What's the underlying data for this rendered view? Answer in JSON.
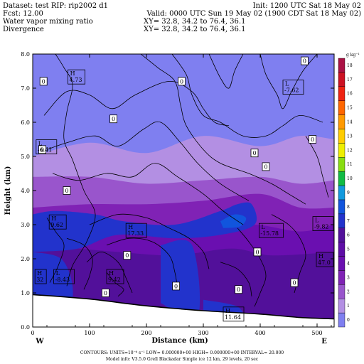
{
  "header": {
    "dataset": "Dataset: test  RIP: rip2002 d1",
    "init": "Init: 1200 UTC Sat 18 May 02",
    "fcst": "Fcst:    12.00",
    "valid": "Valid: 0000 UTC Sun 19 May 02 (1900 CDT Sat 18 May 02)",
    "field1": "Water vapor mixing ratio",
    "xy1": "XY=   32.8, 34.2 to   76.4, 36.1",
    "field2": "Divergence",
    "xy2": "XY=   32.8, 34.2 to   76.4, 36.1"
  },
  "footer": {
    "contours": "CONTOURS:  UNITS=10⁻⁶ s⁻¹  LOW= 0.000000+00  HIGH= 0.000000+00  INTERVAL=    20.000",
    "model": "Model info: V3.5.0   Grell     Blackadar   Simple ice    12 km,  29 levels,   20 sec"
  },
  "chart_data": {
    "type": "heatmap",
    "xlabel": "Distance (km)",
    "ylabel": "Height (km)",
    "xlim": [
      0,
      530
    ],
    "ylim": [
      0,
      8
    ],
    "x_ticks": [
      0,
      100,
      200,
      300,
      400,
      500
    ],
    "y_ticks": [
      "0.0",
      "1.0",
      "2.0",
      "3.0",
      "4.0",
      "5.0",
      "6.0",
      "7.0",
      "8.0"
    ],
    "x_end_labels": {
      "left": "W",
      "right": "E"
    },
    "colorbar": {
      "unit": "g kg⁻¹",
      "levels": [
        "0",
        "1",
        "2",
        "3",
        "4",
        "5",
        "6",
        "7",
        "8",
        "9",
        "10",
        "11",
        "12",
        "13",
        "14",
        "15",
        "16",
        "17",
        "18"
      ],
      "colors": [
        "#7f7ff0",
        "#b38fe3",
        "#9955cc",
        "#8022b5",
        "#6a0fb0",
        "#5e0da6",
        "#52109a",
        "#2233cc",
        "#1155dd",
        "#1199dd",
        "#11bb44",
        "#88dd11",
        "#eeee00",
        "#ffcc00",
        "#ff9900",
        "#ff6600",
        "#ee2211",
        "#cc1122",
        "#aa1144"
      ]
    },
    "fill_bands": [
      {
        "level": 0,
        "top": [
          [
            0,
            8.0
          ],
          [
            530,
            8.0
          ]
        ]
      },
      {
        "level": 1,
        "top": [
          [
            0,
            5.0
          ],
          [
            100,
            5.4
          ],
          [
            200,
            5.1
          ],
          [
            300,
            5.6
          ],
          [
            400,
            5.3
          ],
          [
            470,
            5.6
          ],
          [
            530,
            5.5
          ]
        ]
      },
      {
        "level": 2,
        "top": [
          [
            0,
            4.4
          ],
          [
            100,
            4.4
          ],
          [
            200,
            4.2
          ],
          [
            300,
            4.3
          ],
          [
            400,
            4.4
          ],
          [
            470,
            4.2
          ],
          [
            530,
            4.3
          ]
        ]
      },
      {
        "level": 3,
        "top": [
          [
            0,
            3.5
          ],
          [
            100,
            3.6
          ],
          [
            200,
            3.6
          ],
          [
            300,
            3.7
          ],
          [
            400,
            3.9
          ],
          [
            470,
            3.5
          ],
          [
            530,
            3.5
          ]
        ]
      },
      {
        "level": 4,
        "top": [
          [
            0,
            3.0
          ],
          [
            60,
            3.0
          ],
          [
            130,
            2.9
          ],
          [
            200,
            2.7
          ],
          [
            300,
            2.9
          ],
          [
            390,
            3.0
          ],
          [
            470,
            2.8
          ],
          [
            530,
            3.0
          ]
        ]
      },
      {
        "level": 6,
        "top": [
          [
            0,
            2.4
          ],
          [
            80,
            2.3
          ],
          [
            150,
            2.2
          ],
          [
            250,
            2.1
          ],
          [
            350,
            2.3
          ],
          [
            420,
            2.1
          ],
          [
            530,
            2.2
          ]
        ]
      }
    ],
    "blue_patches": [
      {
        "level": 7,
        "pts": [
          [
            0,
            3.3
          ],
          [
            40,
            3.4
          ],
          [
            110,
            3.3
          ],
          [
            160,
            3.1
          ],
          [
            250,
            3.0
          ],
          [
            330,
            3.4
          ],
          [
            360,
            3.6
          ],
          [
            385,
            3.6
          ],
          [
            390,
            3.0
          ],
          [
            330,
            2.7
          ],
          [
            250,
            2.6
          ],
          [
            150,
            2.7
          ],
          [
            80,
            2.3
          ],
          [
            0,
            2.2
          ]
        ]
      },
      {
        "level": 7,
        "pts": [
          [
            0,
            2.2
          ],
          [
            50,
            2.0
          ],
          [
            70,
            1.2
          ],
          [
            60,
            0.6
          ],
          [
            0,
            0.6
          ]
        ]
      },
      {
        "level": 7,
        "pts": [
          [
            225,
            2.4
          ],
          [
            280,
            2.4
          ],
          [
            290,
            0.3
          ],
          [
            225,
            0.7
          ]
        ]
      },
      {
        "level": 7,
        "pts": [
          [
            300,
            0.8
          ],
          [
            360,
            0.6
          ],
          [
            365,
            0.2
          ],
          [
            300,
            0.3
          ]
        ]
      },
      {
        "level": 8,
        "pts": [
          [
            330,
            3.1
          ],
          [
            355,
            3.3
          ],
          [
            375,
            3.2
          ],
          [
            365,
            2.95
          ],
          [
            335,
            2.9
          ]
        ]
      }
    ],
    "terrain": [
      [
        0,
        0.95
      ],
      [
        100,
        0.82
      ],
      [
        200,
        0.62
      ],
      [
        300,
        0.48
      ],
      [
        400,
        0.38
      ],
      [
        470,
        0.28
      ],
      [
        530,
        0.24
      ]
    ],
    "contours": [
      [
        [
          40,
          8.0
        ],
        [
          55,
          7.6
        ],
        [
          70,
          7.1
        ],
        [
          60,
          6.3
        ],
        [
          55,
          5.5
        ],
        [
          70,
          4.9
        ],
        [
          90,
          4.0
        ],
        [
          110,
          3.3
        ],
        [
          95,
          2.5
        ],
        [
          70,
          1.8
        ],
        [
          60,
          1.2
        ]
      ],
      [
        [
          20,
          6.2
        ],
        [
          60,
          6.9
        ],
        [
          100,
          6.8
        ],
        [
          140,
          6.4
        ],
        [
          180,
          6.8
        ],
        [
          240,
          7.2
        ],
        [
          280,
          6.9
        ],
        [
          300,
          6.4
        ],
        [
          320,
          6.0
        ],
        [
          345,
          5.9
        ]
      ],
      [
        [
          25,
          5.2
        ],
        [
          60,
          5.4
        ],
        [
          110,
          5.6
        ],
        [
          150,
          5.3
        ],
        [
          195,
          5.8
        ],
        [
          225,
          6.0
        ],
        [
          260,
          5.4
        ],
        [
          290,
          4.8
        ],
        [
          330,
          4.2
        ],
        [
          380,
          3.7
        ]
      ],
      [
        [
          35,
          4.5
        ],
        [
          80,
          4.3
        ],
        [
          130,
          4.5
        ],
        [
          175,
          4.4
        ],
        [
          215,
          4.8
        ],
        [
          255,
          4.4
        ],
        [
          300,
          3.9
        ],
        [
          335,
          3.4
        ],
        [
          370,
          3.0
        ]
      ],
      [
        [
          100,
          3.0
        ],
        [
          150,
          3.3
        ],
        [
          200,
          3.2
        ],
        [
          240,
          2.9
        ],
        [
          275,
          2.6
        ],
        [
          300,
          2.2
        ],
        [
          310,
          1.7
        ]
      ],
      [
        [
          130,
          2.4
        ],
        [
          170,
          2.6
        ],
        [
          210,
          2.5
        ],
        [
          240,
          2.1
        ],
        [
          250,
          1.6
        ],
        [
          255,
          1.1
        ]
      ],
      [
        [
          95,
          1.9
        ],
        [
          120,
          2.2
        ],
        [
          150,
          1.9
        ],
        [
          165,
          1.4
        ],
        [
          175,
          1.0
        ]
      ],
      [
        [
          190,
          8.0
        ],
        [
          220,
          7.6
        ],
        [
          250,
          7.2
        ],
        [
          260,
          6.5
        ],
        [
          270,
          5.9
        ],
        [
          300,
          5.2
        ],
        [
          330,
          4.8
        ],
        [
          380,
          4.5
        ],
        [
          420,
          4.2
        ],
        [
          450,
          3.9
        ],
        [
          480,
          3.6
        ]
      ],
      [
        [
          245,
          8.0
        ],
        [
          270,
          7.4
        ],
        [
          280,
          6.8
        ],
        [
          300,
          6.2
        ],
        [
          330,
          6.0
        ],
        [
          370,
          5.6
        ],
        [
          410,
          5.6
        ],
        [
          440,
          5.9
        ],
        [
          470,
          6.2
        ],
        [
          510,
          6.0
        ]
      ],
      [
        [
          310,
          8.0
        ],
        [
          330,
          7.3
        ],
        [
          345,
          7.0
        ],
        [
          355,
          7.5
        ],
        [
          370,
          8.0
        ]
      ],
      [
        [
          400,
          8.0
        ],
        [
          410,
          7.4
        ],
        [
          430,
          6.8
        ],
        [
          440,
          6.4
        ],
        [
          455,
          6.9
        ],
        [
          475,
          7.5
        ],
        [
          500,
          8.0
        ]
      ],
      [
        [
          360,
          2.9
        ],
        [
          380,
          2.5
        ],
        [
          400,
          2.0
        ],
        [
          410,
          1.5
        ],
        [
          400,
          1.0
        ],
        [
          390,
          0.6
        ]
      ],
      [
        [
          420,
          3.3
        ],
        [
          450,
          3.0
        ],
        [
          470,
          2.6
        ],
        [
          480,
          2.1
        ],
        [
          470,
          1.6
        ],
        [
          460,
          1.0
        ]
      ],
      [
        [
          25,
          3.2
        ],
        [
          40,
          2.8
        ],
        [
          55,
          2.4
        ],
        [
          45,
          1.8
        ],
        [
          30,
          1.3
        ]
      ],
      [
        [
          130,
          1.6
        ],
        [
          145,
          1.3
        ],
        [
          160,
          1.1
        ],
        [
          150,
          0.9
        ]
      ],
      [
        [
          60,
          2.6
        ],
        [
          90,
          2.4
        ],
        [
          105,
          2.0
        ],
        [
          100,
          1.5
        ],
        [
          90,
          1.1
        ]
      ],
      [
        [
          480,
          5.6
        ],
        [
          500,
          5.0
        ],
        [
          510,
          4.4
        ],
        [
          520,
          3.8
        ]
      ],
      [
        [
          330,
          1.9
        ],
        [
          360,
          1.7
        ],
        [
          380,
          1.3
        ],
        [
          385,
          0.9
        ]
      ]
    ],
    "zero_labels": [
      {
        "x": 19,
        "y": 7.2
      },
      {
        "x": 142,
        "y": 6.1
      },
      {
        "x": 262,
        "y": 7.2
      },
      {
        "x": 60,
        "y": 4.0
      },
      {
        "x": 128,
        "y": 1.0
      },
      {
        "x": 166,
        "y": 2.1
      },
      {
        "x": 252,
        "y": 1.2
      },
      {
        "x": 390,
        "y": 5.1
      },
      {
        "x": 478,
        "y": 7.8
      },
      {
        "x": 492,
        "y": 5.5
      },
      {
        "x": 395,
        "y": 2.2
      },
      {
        "x": 460,
        "y": 1.3
      },
      {
        "x": 362,
        "y": 1.1
      },
      {
        "x": 17,
        "y": 5.2
      },
      {
        "x": 410,
        "y": 4.7
      }
    ],
    "hl_labels": [
      {
        "type": "H",
        "value": "4.73",
        "x": 62,
        "y": 7.35
      },
      {
        "type": "L",
        "value": "-7.62",
        "x": 440,
        "y": 7.05
      },
      {
        "type": "L",
        "value": "-6.41",
        "x": 6,
        "y": 5.3
      },
      {
        "type": "H",
        "value": "9.62",
        "x": 29,
        "y": 3.1
      },
      {
        "type": "H",
        "value": "17.33",
        "x": 164,
        "y": 2.85
      },
      {
        "type": "L",
        "value": "-15.78",
        "x": 398,
        "y": 2.85
      },
      {
        "type": "L",
        "value": "-9.82",
        "x": 515,
        "y": 3.05
      },
      {
        "type": "H",
        "value": "47.0",
        "x": 520,
        "y": 2.0
      },
      {
        "type": "L",
        "value": "-8.43",
        "x": 37,
        "y": 1.5
      },
      {
        "type": "H",
        "value": "9.42",
        "x": 130,
        "y": 1.5
      },
      {
        "type": "H",
        "value": "32",
        "x": 4,
        "y": 1.5
      },
      {
        "type": "H",
        "value": "11.64",
        "x": 335,
        "y": 0.4
      }
    ]
  }
}
